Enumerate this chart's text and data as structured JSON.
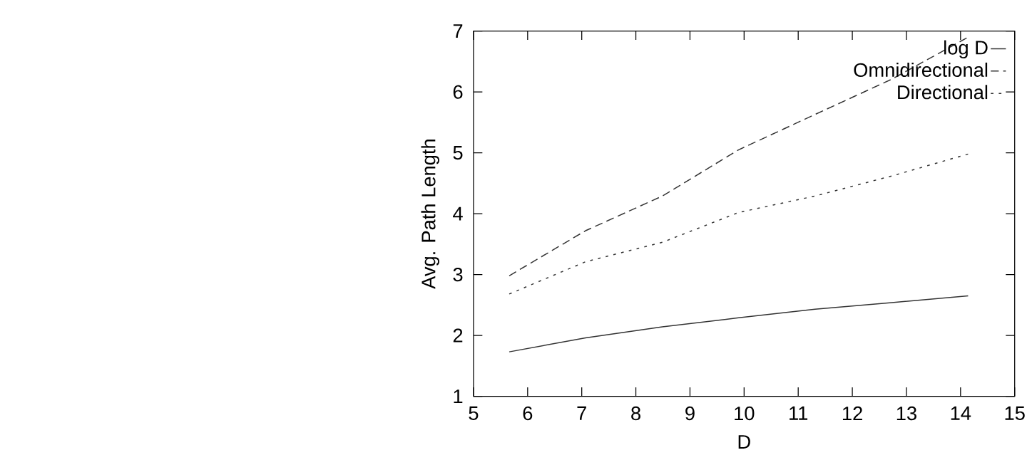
{
  "chart_data": {
    "type": "line",
    "xlabel": "D",
    "ylabel": "Avg. Path Length",
    "x": [
      5.66,
      7.07,
      8.49,
      9.9,
      11.31,
      12.73,
      14.14
    ],
    "series": [
      {
        "name": "log D",
        "color": "#333333",
        "line_style": "solid",
        "values": [
          1.73,
          1.96,
          2.14,
          2.29,
          2.43,
          2.54,
          2.65
        ]
      },
      {
        "name": "Omnidirectional",
        "color": "#333333",
        "line_style": "dashed",
        "values": [
          2.98,
          3.72,
          4.29,
          5.05,
          5.63,
          6.21,
          6.9
        ]
      },
      {
        "name": "Directional",
        "color": "#333333",
        "line_style": "dotted",
        "values": [
          2.68,
          3.21,
          3.53,
          4.02,
          4.29,
          4.62,
          4.98
        ]
      }
    ],
    "xlim": [
      5,
      15
    ],
    "xticks": [
      5,
      6,
      7,
      8,
      9,
      10,
      11,
      12,
      13,
      14,
      15
    ],
    "ylim": [
      1,
      7
    ],
    "yticks": [
      1,
      2,
      3,
      4,
      5,
      6,
      7
    ],
    "legend": "top right",
    "marker": "none"
  }
}
